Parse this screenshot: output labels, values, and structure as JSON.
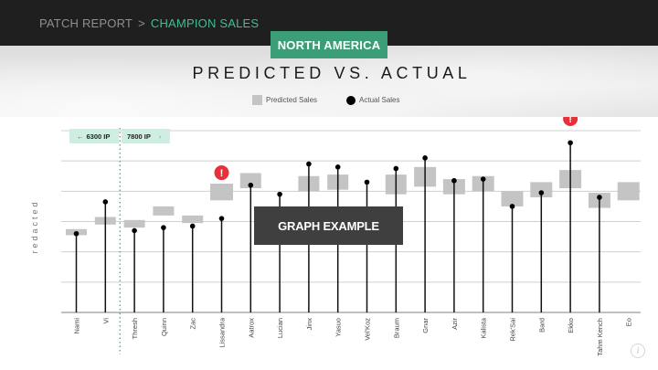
{
  "breadcrumb": {
    "parent": "PATCH REPORT",
    "separator": ">",
    "current": "CHAMPION SALES"
  },
  "region": "NORTH AMERICA",
  "overlay_label": "GRAPH EXAMPLE",
  "ip_markers": {
    "left": "6300 IP",
    "right": "7800 IP",
    "left_arrow": "←",
    "right_arrow": "›"
  },
  "colors": {
    "accent": "#3b9e76",
    "breadcrumb_current": "#3fbf8f",
    "predicted": "#c4c4c4",
    "actual": "#000000",
    "alert": "#e8303a",
    "ip_tag": "#cdeee0"
  },
  "icons": {
    "alert": "alert-icon",
    "info": "info-icon"
  },
  "chart_data": {
    "type": "bar",
    "title": "PREDICTED VS. ACTUAL",
    "ylabel": "redacted",
    "xlabel": "",
    "grid": true,
    "ylim": [
      0,
      6
    ],
    "categories": [
      "Nami",
      "Vi",
      "Thresh",
      "Quinn",
      "Zac",
      "Lissandra",
      "Aatrox",
      "Lucian",
      "Jinx",
      "Yasuo",
      "Vel'Koz",
      "Braum",
      "Gnar",
      "Azir",
      "Kalista",
      "Rek'Sai",
      "Bard",
      "Ekko",
      "Tahm Kench",
      "Eo"
    ],
    "predicted_sales": [
      [
        2.55,
        2.75
      ],
      [
        2.9,
        3.15
      ],
      [
        2.8,
        3.05
      ],
      [
        3.2,
        3.5
      ],
      [
        2.95,
        3.2
      ],
      [
        3.7,
        4.25
      ],
      [
        4.1,
        4.6
      ],
      null,
      [
        4.0,
        4.5
      ],
      [
        4.05,
        4.55
      ],
      null,
      [
        3.9,
        4.55
      ],
      [
        4.15,
        4.8
      ],
      [
        3.9,
        4.4
      ],
      [
        4.0,
        4.5
      ],
      [
        3.5,
        4.0
      ],
      [
        3.8,
        4.3
      ],
      [
        4.1,
        4.7
      ],
      [
        3.45,
        3.95
      ],
      [
        3.7,
        4.3
      ]
    ],
    "actual_sales": [
      2.6,
      3.65,
      2.7,
      2.8,
      2.85,
      3.1,
      4.2,
      3.9,
      4.9,
      4.8,
      4.3,
      4.75,
      5.1,
      4.35,
      4.4,
      3.5,
      3.95,
      5.6,
      3.8,
      null
    ],
    "alerts": [
      "Lissandra",
      "Ekko"
    ],
    "legend": [
      "Predicted Sales",
      "Actual Sales"
    ],
    "legend_position": "top-center",
    "divider_after": "Vi"
  }
}
